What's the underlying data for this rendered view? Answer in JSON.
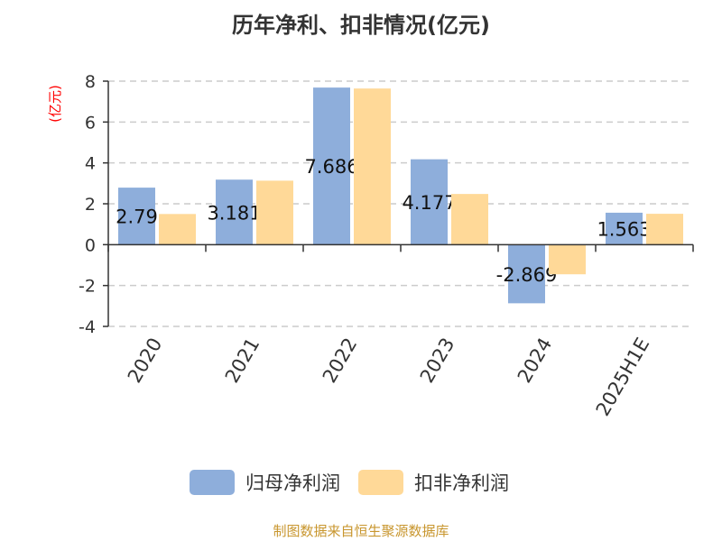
{
  "chart_data": {
    "type": "bar",
    "title": "历年净利、扣非情况(亿元)",
    "ylabel": "(亿元)",
    "xlabel": "",
    "categories": [
      "2020",
      "2021",
      "2022",
      "2023",
      "2024",
      "2025H1E"
    ],
    "ylim": [
      -4,
      8
    ],
    "yticks": [
      -4,
      -2,
      0,
      2,
      4,
      6,
      8
    ],
    "grid": true,
    "legend_position": "bottom",
    "series": [
      {
        "name": "归母净利润",
        "color": "#8eaedb",
        "values": [
          2.79,
          3.181,
          7.686,
          4.177,
          -2.869,
          1.563
        ],
        "labels": [
          "2.79",
          "3.181",
          "7.686",
          "4.177",
          "-2.869",
          "1.563"
        ]
      },
      {
        "name": "扣非净利润",
        "color": "#ffd998",
        "values": [
          1.5,
          3.13,
          7.64,
          2.48,
          -1.45,
          1.51
        ]
      }
    ]
  },
  "footer": "制图数据来自恒生聚源数据库",
  "ylabel_color": "#ff0000",
  "footer_color": "#c8962e"
}
